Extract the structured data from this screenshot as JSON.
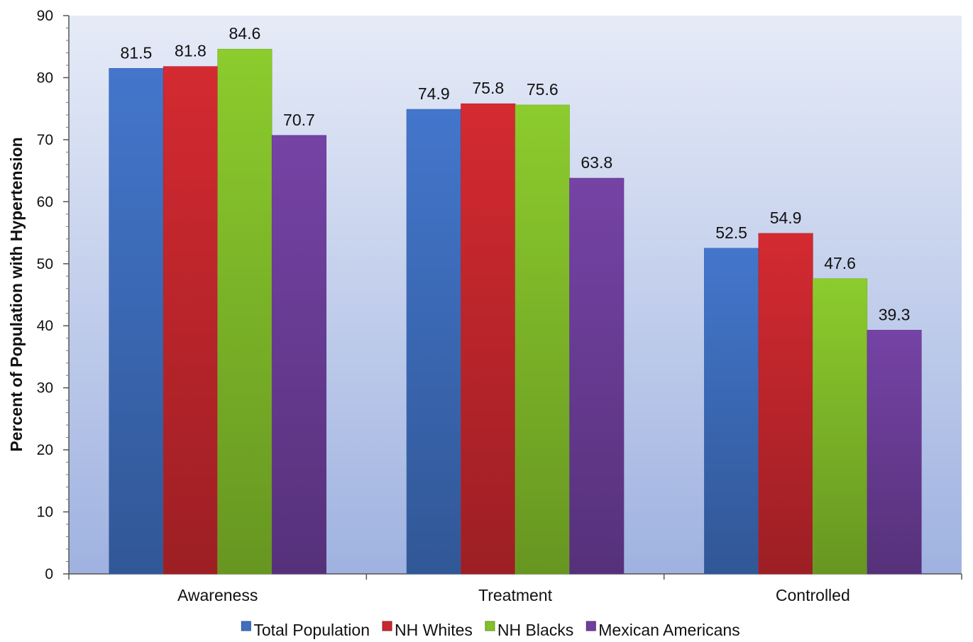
{
  "chart_data": {
    "type": "bar",
    "title": "",
    "xlabel": "",
    "ylabel": "Percent of Population with Hypertension",
    "ylim": [
      0,
      90
    ],
    "yticks": [
      0,
      10,
      20,
      30,
      40,
      50,
      60,
      70,
      80,
      90
    ],
    "categories": [
      "Awareness",
      "Treatment",
      "Controlled"
    ],
    "series": [
      {
        "name": "Total Population",
        "color": "#3f6fc0",
        "values": [
          81.5,
          74.9,
          52.5
        ]
      },
      {
        "name": "NH Whites",
        "color": "#c8282e",
        "values": [
          81.8,
          75.8,
          54.9
        ]
      },
      {
        "name": "NH Blacks",
        "color": "#84c02a",
        "values": [
          84.6,
          75.6,
          47.6
        ]
      },
      {
        "name": "Mexican Americans",
        "color": "#6e3f9c",
        "values": [
          70.7,
          63.8,
          39.3
        ]
      }
    ],
    "legend_position": "bottom",
    "grid": false
  }
}
